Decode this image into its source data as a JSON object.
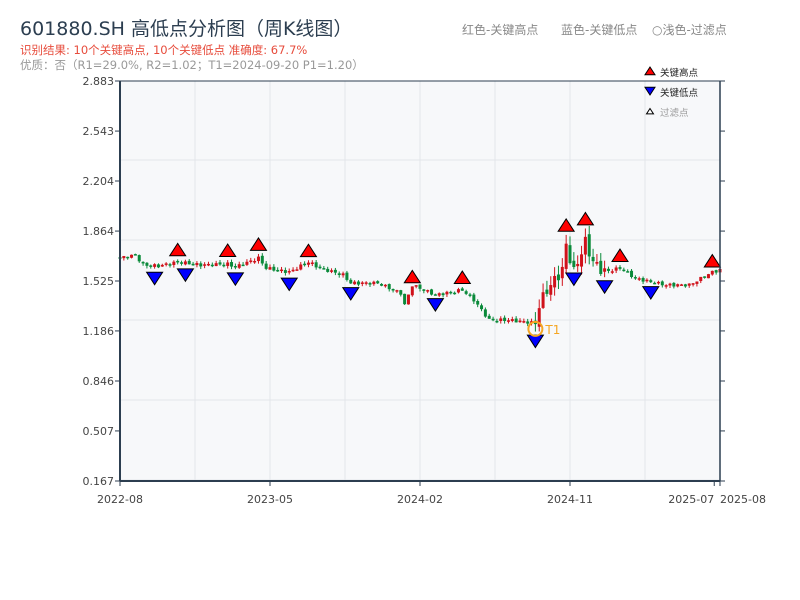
{
  "header": {
    "title": "601880.SH 高低点分析图（周K线图）",
    "result": "识别结果: 10个关键高点, 10个关键低点   准确度: 67.7%",
    "quality": "优质：否（R1=29.0%, R2=1.02；T1=2024-09-20 P1=1.20）",
    "hint_red": "红色-关键高点",
    "hint_blue": "蓝色-关键低点",
    "hint_light": "○浅色-过滤点"
  },
  "chart_data": {
    "type": "candlestick",
    "title": "601880.SH 高低点分析图（周K线图）",
    "x_unit": "weeks since 2022-08",
    "xlim": [
      0,
      156
    ],
    "ylim": [
      0.167,
      2.883
    ],
    "grid": true,
    "legend_placement": "top-right",
    "legend": [
      {
        "label": "关键高点",
        "color": "#ff0000",
        "shape": "up"
      },
      {
        "label": "关键低点",
        "color": "#0000ff",
        "shape": "down"
      },
      {
        "label": "过滤点",
        "color": "#ffffff",
        "shape": "up-small"
      }
    ],
    "colors": {
      "up": "#d0121b",
      "down": "#0a8a3a",
      "high": "#ff0000",
      "low": "#0000ff",
      "t1": "#f5a623",
      "axis": "#2c3e50",
      "grid": "#e3e6ea",
      "bg": "#f7f8fa"
    },
    "y_ticks": [
      "0.167",
      "0.507",
      "0.846",
      "1.186",
      "1.525",
      "1.864",
      "2.204",
      "2.543",
      "2.883"
    ],
    "x_ticks": [
      {
        "label": "2022-08",
        "week": 0
      },
      {
        "label": "2023-05",
        "week": 39
      },
      {
        "label": "2024-02",
        "week": 78
      },
      {
        "label": "2024-11",
        "week": 117
      },
      {
        "label": "2025-07",
        "week": 154.5
      },
      {
        "label": "2025-08",
        "week": 156
      }
    ],
    "close_path": [
      [
        0,
        1.681
      ],
      [
        4,
        1.702
      ],
      [
        6,
        1.634
      ],
      [
        10,
        1.627
      ],
      [
        15,
        1.654
      ],
      [
        21,
        1.634
      ],
      [
        28,
        1.64
      ],
      [
        30,
        1.62
      ],
      [
        36,
        1.681
      ],
      [
        38,
        1.613
      ],
      [
        44,
        1.586
      ],
      [
        49,
        1.654
      ],
      [
        52,
        1.613
      ],
      [
        58,
        1.566
      ],
      [
        60,
        1.511
      ],
      [
        67,
        1.511
      ],
      [
        73,
        1.443
      ],
      [
        74,
        1.362
      ],
      [
        76,
        1.498
      ],
      [
        82,
        1.43
      ],
      [
        89,
        1.464
      ],
      [
        92,
        1.396
      ],
      [
        96,
        1.26
      ],
      [
        101,
        1.26
      ],
      [
        108,
        1.24
      ],
      [
        109,
        1.362
      ],
      [
        111,
        1.464
      ],
      [
        115,
        1.6
      ],
      [
        116,
        1.77
      ],
      [
        118,
        1.586
      ],
      [
        121,
        1.79
      ],
      [
        123,
        1.654
      ],
      [
        126,
        1.586
      ],
      [
        130,
        1.613
      ],
      [
        134,
        1.545
      ],
      [
        138,
        1.518
      ],
      [
        142,
        1.498
      ],
      [
        148,
        1.498
      ],
      [
        154,
        1.586
      ],
      [
        156,
        1.6
      ]
    ],
    "key_highs": [
      15,
      28,
      36,
      49,
      76,
      89,
      116,
      121,
      130,
      154
    ],
    "key_lows": [
      9,
      17,
      30,
      44,
      60,
      82,
      108,
      118,
      126,
      138
    ],
    "t1": {
      "label": "T1",
      "date": "2024-09-20",
      "week": 108,
      "price": 1.2
    }
  }
}
